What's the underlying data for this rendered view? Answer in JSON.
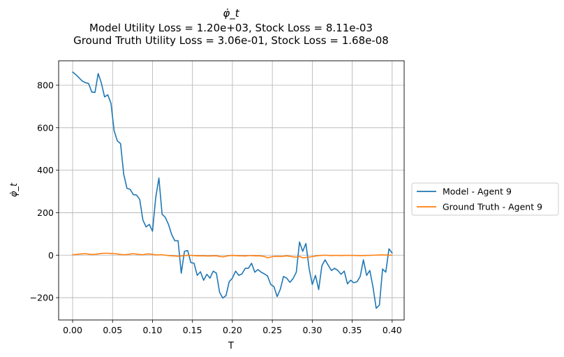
{
  "chart_data": {
    "type": "line",
    "title": "φ̇_t",
    "subtitle_lines": [
      "Model Utility Loss = 1.20e+03, Stock Loss = 8.11e-03",
      "Ground Truth Utility Loss = 3.06e-01, Stock Loss = 1.68e-08"
    ],
    "xlabel": "T",
    "ylabel": "φ̇_t",
    "xlim": [
      -0.0175,
      0.415
    ],
    "ylim": [
      -305,
      915
    ],
    "xticks": [
      0.0,
      0.05,
      0.1,
      0.15,
      0.2,
      0.25,
      0.3,
      0.35,
      0.4
    ],
    "xtick_labels": [
      "0.00",
      "0.05",
      "0.10",
      "0.15",
      "0.20",
      "0.25",
      "0.30",
      "0.35",
      "0.40"
    ],
    "yticks": [
      -200,
      0,
      200,
      400,
      600,
      800
    ],
    "ytick_labels": [
      "−200",
      "0",
      "200",
      "400",
      "600",
      "800"
    ],
    "grid": true,
    "legend_position": "outside-right",
    "dt": 0.004,
    "series": [
      {
        "name": "Model - Agent 9",
        "color": "#1f77b4",
        "values": [
          862,
          850,
          835,
          820,
          812,
          808,
          768,
          766,
          855,
          810,
          745,
          755,
          715,
          585,
          538,
          525,
          380,
          315,
          310,
          285,
          283,
          262,
          165,
          133,
          145,
          113,
          270,
          363,
          193,
          178,
          145,
          97,
          68,
          68,
          -85,
          18,
          22,
          -35,
          -38,
          -95,
          -78,
          -118,
          -90,
          -108,
          -75,
          -85,
          -175,
          -202,
          -190,
          -125,
          -108,
          -75,
          -95,
          -88,
          -62,
          -62,
          -38,
          -80,
          -68,
          -80,
          -88,
          -98,
          -138,
          -148,
          -195,
          -160,
          -100,
          -108,
          -128,
          -110,
          -80,
          62,
          18,
          55,
          -62,
          -138,
          -95,
          -162,
          -50,
          -22,
          -48,
          -72,
          -62,
          -72,
          -90,
          -75,
          -135,
          -118,
          -130,
          -125,
          -100,
          -22,
          -95,
          -72,
          -150,
          -250,
          -235,
          -65,
          -80,
          30,
          10
        ]
      },
      {
        "name": "Ground Truth - Agent 9",
        "color": "#ff7f0e",
        "values": [
          2,
          3,
          5,
          6,
          7,
          5,
          3,
          4,
          6,
          8,
          9,
          9,
          8,
          7,
          6,
          3,
          2,
          3,
          5,
          7,
          5,
          3,
          2,
          5,
          6,
          4,
          1,
          2,
          2,
          0,
          -2,
          -3,
          -4,
          -5,
          -4,
          -2,
          -1,
          -1,
          -2,
          -3,
          -3,
          -3,
          -4,
          -4,
          -3,
          -3,
          -6,
          -8,
          -5,
          -2,
          -1,
          -2,
          -3,
          -3,
          -4,
          -2,
          -2,
          -3,
          -3,
          -4,
          -6,
          -12,
          -9,
          -6,
          -5,
          -6,
          -5,
          -3,
          -5,
          -8,
          -9,
          -6,
          -12,
          -11,
          -9,
          -7,
          -4,
          -2,
          -1,
          0,
          -1,
          -2,
          -1,
          -1,
          -2,
          -1,
          -1,
          -1,
          -1,
          -2,
          -2,
          -2,
          -1,
          -1,
          0,
          0,
          1,
          1,
          1,
          0,
          0
        ]
      }
    ]
  }
}
